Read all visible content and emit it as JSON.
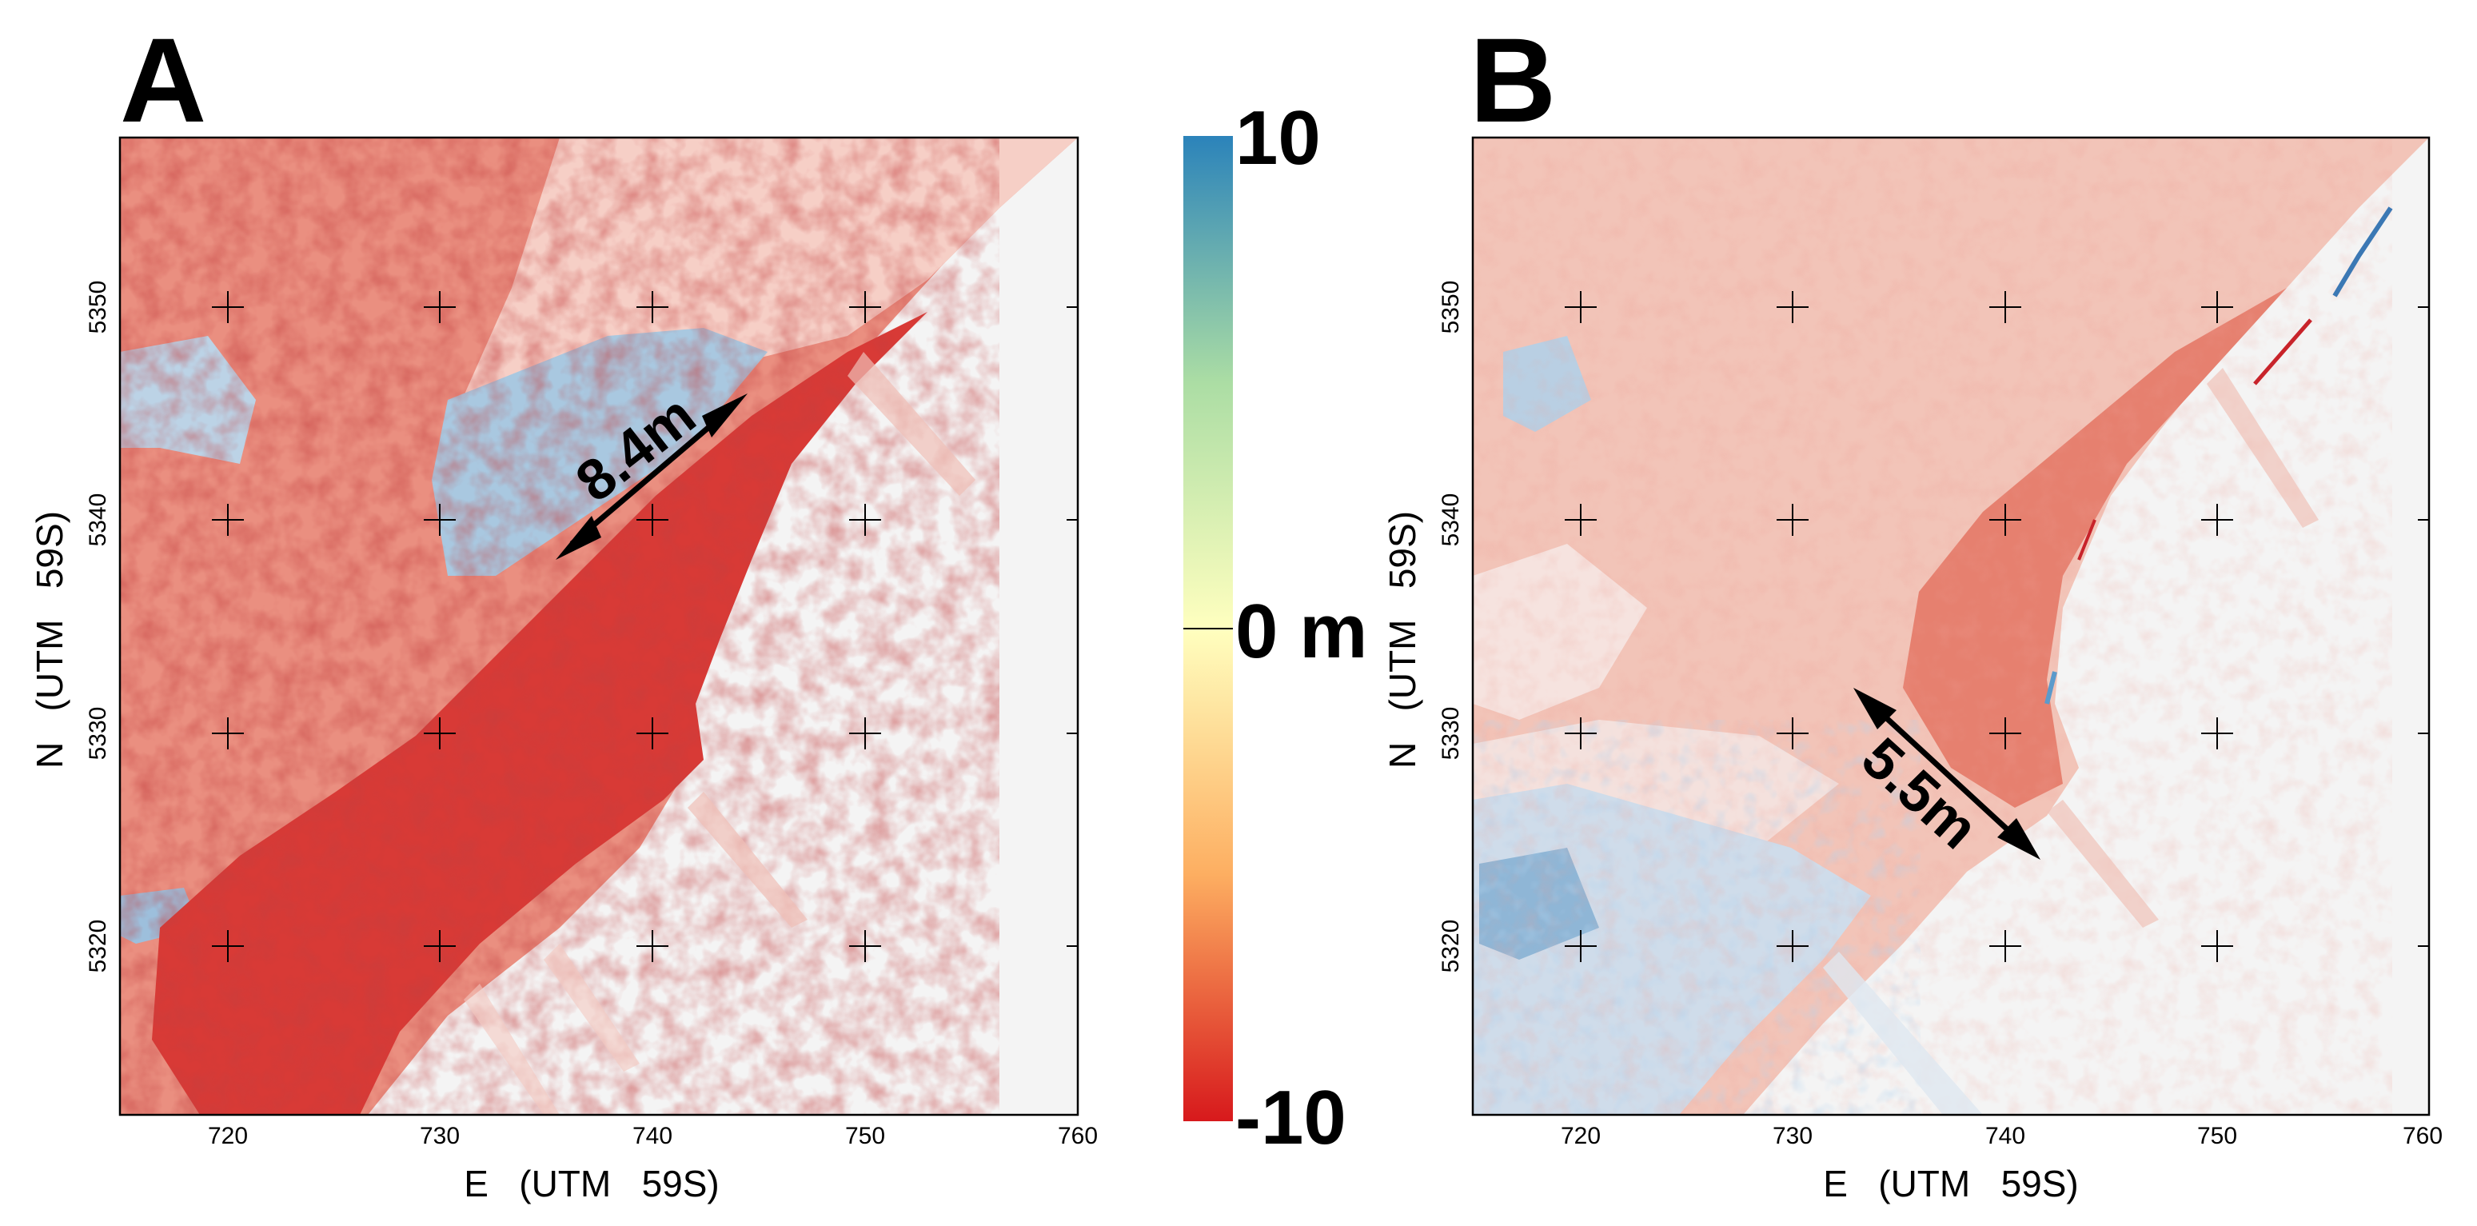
{
  "panels": [
    {
      "letter": "A",
      "xlabel": "E   (UTM   59S)",
      "ylabel": "N   (UTM   59S)",
      "x_ticks": [
        "720",
        "730",
        "740",
        "750",
        "760"
      ],
      "y_ticks": [
        "5320",
        "5330",
        "5340",
        "5350"
      ],
      "annotation": {
        "label": "8.4m",
        "value_m": 8.4
      }
    },
    {
      "letter": "B",
      "xlabel": "E   (UTM   59S)",
      "ylabel": "N   (UTM   59S)",
      "x_ticks": [
        "720",
        "730",
        "740",
        "750",
        "760"
      ],
      "y_ticks": [
        "5320",
        "5330",
        "5340",
        "5350"
      ],
      "annotation": {
        "label": "5.5m",
        "value_m": 5.5
      }
    }
  ],
  "colorbar": {
    "max_label": "10",
    "zero_label": "0 m",
    "min_label": "-10",
    "range": [
      -10,
      10
    ],
    "colors": [
      "#d7191c",
      "#fdae61",
      "#ffffbf",
      "#abdda4",
      "#2b83ba"
    ]
  }
}
